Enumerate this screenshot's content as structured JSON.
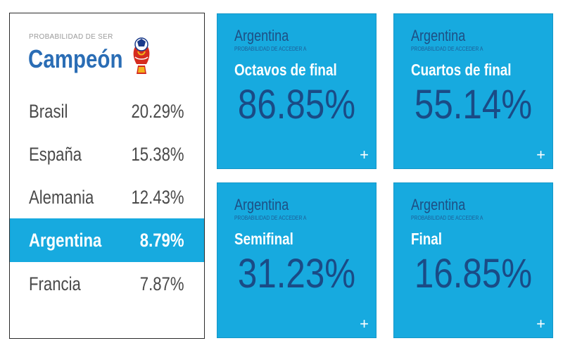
{
  "champion_panel": {
    "kicker": "PROBABILIDAD DE SER",
    "title": "Campeón",
    "rankings": [
      {
        "team": "Brasil",
        "pct": "20.29%"
      },
      {
        "team": "España",
        "pct": "15.38%"
      },
      {
        "team": "Alemania",
        "pct": "12.43%"
      },
      {
        "team": "Argentina",
        "pct": "8.79%",
        "highlighted": true
      },
      {
        "team": "Francia",
        "pct": "7.87%"
      }
    ]
  },
  "stage_cards": [
    {
      "team": "Argentina",
      "kicker": "PROBABILIDAD DE ACCEDER A",
      "stage": "Octavos de final",
      "pct": "86.85%",
      "expand": "+"
    },
    {
      "team": "Argentina",
      "kicker": "PROBABILIDAD DE ACCEDER A",
      "stage": "Cuartos de final",
      "pct": "55.14%",
      "expand": "+"
    },
    {
      "team": "Argentina",
      "kicker": "PROBABILIDAD DE ACCEDER A",
      "stage": "Semifinal",
      "pct": "31.23%",
      "expand": "+"
    },
    {
      "team": "Argentina",
      "kicker": "PROBABILIDAD DE ACCEDER A",
      "stage": "Final",
      "pct": "16.85%",
      "expand": "+"
    }
  ],
  "colors": {
    "title_blue": "#2a6db5",
    "card_bg": "#17aadf",
    "card_number": "#1a4b86",
    "card_team": "#1e4f84",
    "text_gray": "#4a4a4a",
    "highlight_bg": "#17aadf"
  },
  "icons": {
    "trophy_ball": "world-cup-ball-logo-icon",
    "expand": "plus-icon"
  }
}
